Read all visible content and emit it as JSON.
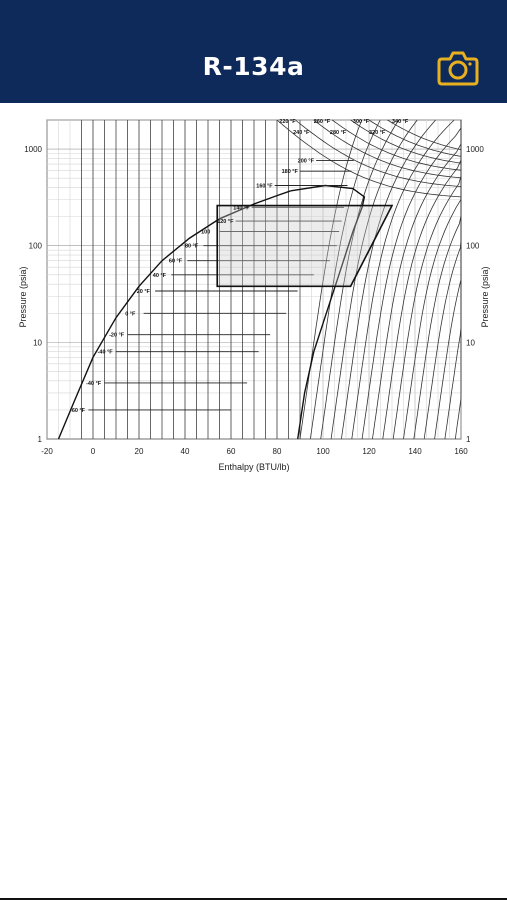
{
  "header": {
    "title": "R-134a",
    "camera_icon": "camera-icon",
    "accent_color": "#e8b021",
    "background_color": "#0d2a5a"
  },
  "chart_data": {
    "type": "line",
    "title": "",
    "xlabel": "Enthalpy (BTU/lb)",
    "ylabel": "Pressure (psia)",
    "ylabel_right": "Pressure (psia)",
    "xlim": [
      -20,
      160
    ],
    "ylim": [
      1,
      2000
    ],
    "y_scale": "log",
    "grid": true,
    "x_ticks": [
      -20,
      0,
      20,
      40,
      60,
      80,
      100,
      120,
      140,
      160
    ],
    "y_ticks": [
      1,
      10,
      100,
      1000
    ],
    "x_tick_labels": [
      "-20",
      "0",
      "20",
      "40",
      "60",
      "80",
      "100",
      "120",
      "140",
      "160"
    ],
    "y_tick_labels": [
      "1",
      "10",
      "100",
      "1000"
    ],
    "dome_liquid": [
      [
        -15,
        1
      ],
      [
        -8,
        2.5
      ],
      [
        0,
        7
      ],
      [
        10,
        18
      ],
      [
        20,
        38
      ],
      [
        30,
        70
      ],
      [
        42,
        120
      ],
      [
        55,
        190
      ],
      [
        70,
        270
      ],
      [
        80,
        330
      ],
      [
        86,
        370
      ]
    ],
    "dome_vapor": [
      [
        89,
        1
      ],
      [
        92,
        3
      ],
      [
        96,
        8
      ],
      [
        102,
        22
      ],
      [
        108,
        60
      ],
      [
        113,
        140
      ],
      [
        117,
        250
      ],
      [
        118,
        320
      ],
      [
        113,
        390
      ],
      [
        101,
        420
      ],
      [
        86,
        370
      ]
    ],
    "cycle": [
      [
        54,
        38
      ],
      [
        54,
        260
      ],
      [
        130,
        260
      ],
      [
        112,
        38
      ],
      [
        54,
        38
      ]
    ],
    "isotherm_labels": [
      {
        "label": "-60 °F",
        "h": -10,
        "p": 2.0
      },
      {
        "label": "-40 °F",
        "h": -3,
        "p": 3.8
      },
      {
        "label": "-40 °F",
        "h": 2,
        "p": 8.0
      },
      {
        "label": "-20 °F",
        "h": 7,
        "p": 12.0
      },
      {
        "label": "0 °F",
        "h": 14,
        "p": 20.0
      },
      {
        "label": "20 °F",
        "h": 19,
        "p": 34.0
      },
      {
        "label": "40 °F",
        "h": 26,
        "p": 50.0
      },
      {
        "label": "60 °F",
        "h": 33,
        "p": 70.0
      },
      {
        "label": "80 °F",
        "h": 40,
        "p": 100.0
      },
      {
        "label": "100",
        "h": 47,
        "p": 140.0
      },
      {
        "label": "120 °F",
        "h": 54,
        "p": 180.0
      },
      {
        "label": "140 °F",
        "h": 61,
        "p": 250.0
      },
      {
        "label": "160 °F",
        "h": 71,
        "p": 420.0
      },
      {
        "label": "180 °F",
        "h": 82,
        "p": 590.0
      },
      {
        "label": "200 °F",
        "h": 89,
        "p": 760.0
      },
      {
        "label": "220 °F",
        "h": 81,
        "p": 1950.0
      },
      {
        "label": "240 °F",
        "h": 87,
        "p": 1500.0
      },
      {
        "label": "260 °F",
        "h": 96,
        "p": 1950.0
      },
      {
        "label": "280 °F",
        "h": 103,
        "p": 1500.0
      },
      {
        "label": "300 °F",
        "h": 113,
        "p": 1950.0
      },
      {
        "label": "320 °F",
        "h": 120,
        "p": 1500.0
      },
      {
        "label": "340 °F",
        "h": 130,
        "p": 1950.0
      }
    ]
  }
}
